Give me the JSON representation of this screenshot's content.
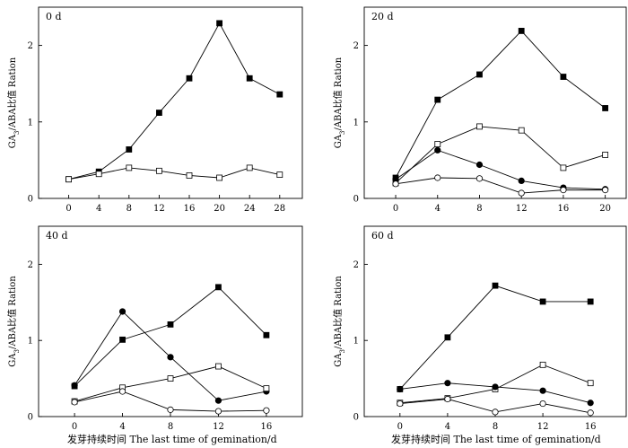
{
  "figure": {
    "xlabel": "发芽持续时间 The last time of gemination/d",
    "ylabel_main": "GA",
    "ylabel_sub": "3",
    "ylabel_rest": "/ABA比值 Ration"
  },
  "chart_data": [
    {
      "type": "line",
      "panel_label": "0 d",
      "x": [
        0,
        4,
        8,
        12,
        16,
        20,
        24,
        28
      ],
      "xlim": [
        -4,
        31
      ],
      "ylim": [
        0,
        2.5
      ],
      "yticks": [
        0,
        1,
        2
      ],
      "series": [
        {
          "name": "filled-square",
          "marker": "filled-square",
          "values": [
            0.25,
            0.35,
            0.64,
            1.12,
            1.57,
            2.29,
            1.57,
            1.36
          ]
        },
        {
          "name": "open-square",
          "marker": "open-square",
          "values": [
            0.25,
            0.32,
            0.4,
            0.36,
            0.3,
            0.27,
            0.4,
            0.31
          ]
        }
      ]
    },
    {
      "type": "line",
      "panel_label": "20 d",
      "x": [
        0,
        4,
        8,
        12,
        16,
        20
      ],
      "xlim": [
        -3,
        22
      ],
      "ylim": [
        0,
        2.5
      ],
      "yticks": [
        0,
        1,
        2
      ],
      "series": [
        {
          "name": "filled-square",
          "marker": "filled-square",
          "values": [
            0.27,
            1.29,
            1.62,
            2.19,
            1.59,
            1.18
          ]
        },
        {
          "name": "open-square",
          "marker": "open-square",
          "values": [
            0.2,
            0.71,
            0.94,
            0.89,
            0.4,
            0.57
          ]
        },
        {
          "name": "filled-circle",
          "marker": "filled-circle",
          "values": [
            0.25,
            0.63,
            0.44,
            0.23,
            0.14,
            0.12
          ]
        },
        {
          "name": "open-circle",
          "marker": "open-circle",
          "values": [
            0.19,
            0.27,
            0.26,
            0.07,
            0.11,
            0.11
          ]
        }
      ]
    },
    {
      "type": "line",
      "panel_label": "40 d",
      "x": [
        0,
        4,
        8,
        12,
        16
      ],
      "xlim": [
        -3,
        19
      ],
      "ylim": [
        0,
        2.5
      ],
      "yticks": [
        0,
        1,
        2
      ],
      "series": [
        {
          "name": "filled-square",
          "marker": "filled-square",
          "values": [
            0.4,
            1.01,
            1.21,
            1.7,
            1.07
          ]
        },
        {
          "name": "filled-circle",
          "marker": "filled-circle",
          "values": [
            0.41,
            1.38,
            0.78,
            0.21,
            0.33
          ]
        },
        {
          "name": "open-square",
          "marker": "open-square",
          "values": [
            0.2,
            0.38,
            0.5,
            0.66,
            0.37
          ]
        },
        {
          "name": "open-circle",
          "marker": "open-circle",
          "values": [
            0.19,
            0.33,
            0.09,
            0.07,
            0.08
          ]
        }
      ]
    },
    {
      "type": "line",
      "panel_label": "60 d",
      "x": [
        0,
        4,
        8,
        12,
        16
      ],
      "xlim": [
        -3,
        19
      ],
      "ylim": [
        0,
        2.5
      ],
      "yticks": [
        0,
        1,
        2
      ],
      "series": [
        {
          "name": "filled-square",
          "marker": "filled-square",
          "values": [
            0.36,
            1.04,
            1.72,
            1.51,
            1.51
          ]
        },
        {
          "name": "open-square",
          "marker": "open-square",
          "values": [
            0.18,
            0.24,
            0.36,
            0.68,
            0.44
          ]
        },
        {
          "name": "filled-circle",
          "marker": "filled-circle",
          "values": [
            0.36,
            0.44,
            0.39,
            0.34,
            0.18
          ]
        },
        {
          "name": "open-circle",
          "marker": "open-circle",
          "values": [
            0.17,
            0.23,
            0.06,
            0.17,
            0.05
          ]
        }
      ]
    }
  ]
}
